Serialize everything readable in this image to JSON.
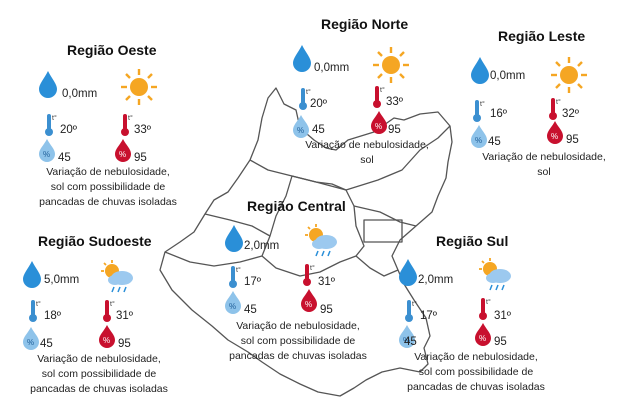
{
  "regions": {
    "oeste": {
      "title": "Região Oeste",
      "rain": "0,0mm",
      "tmin": "20º",
      "tmax": "33º",
      "hmin": "45",
      "hmax": "95",
      "desc": [
        "Variação de nebulosidade,",
        "sol com possibilidade de",
        "pancadas de chuvas isoladas"
      ],
      "icon": "sun-icon"
    },
    "norte": {
      "title": "Região Norte",
      "rain": "0,0mm",
      "tmin": "20º",
      "tmax": "33º",
      "hmin": "45",
      "hmax": "95",
      "desc": [
        "Variação de nebulosidade,",
        "sol"
      ],
      "icon": "sun-icon"
    },
    "leste": {
      "title": "Região Leste",
      "rain": "0,0mm",
      "tmin": "16º",
      "tmax": "32º",
      "hmin": "45",
      "hmax": "95",
      "desc": [
        "Variação de nebulosidade,",
        "sol"
      ],
      "icon": "sun-icon"
    },
    "central": {
      "title": "Região Central",
      "rain": "2,0mm",
      "tmin": "17º",
      "tmax": "31º",
      "hmin": "45",
      "hmax": "95",
      "desc": [
        "Variação de nebulosidade,",
        "sol com possibilidade de",
        "pancadas de chuvas isoladas"
      ],
      "icon": "sun-cloud-rain-icon"
    },
    "sudoeste": {
      "title": "Região Sudoeste",
      "rain": "5,0mm",
      "tmin": "18º",
      "tmax": "31º",
      "hmin": "45",
      "hmax": "95",
      "desc": [
        "Variação de nebulosidade,",
        "sol com possibilidade de",
        "pancadas de chuvas isoladas"
      ],
      "icon": "sun-cloud-rain-icon"
    },
    "sul": {
      "title": "Região Sul",
      "rain": "2,0mm",
      "tmin": "17º",
      "tmax": "31º",
      "hmin": "45",
      "hmax": "95",
      "desc": [
        "Variação de nebulosidade,",
        "sol com possibilidade de",
        "pancadas de chuvas isoladas"
      ],
      "icon": "sun-cloud-rain-icon"
    }
  },
  "symbols": {
    "temp_mark": "t°",
    "humidity_mark": "%"
  },
  "colors": {
    "rain": "#2a8fd8",
    "sun": "#f5a623",
    "cold": "#3b8fd0",
    "hot": "#c8102e",
    "humidity_light": "#8ec3ea",
    "map_line": "#555555"
  }
}
